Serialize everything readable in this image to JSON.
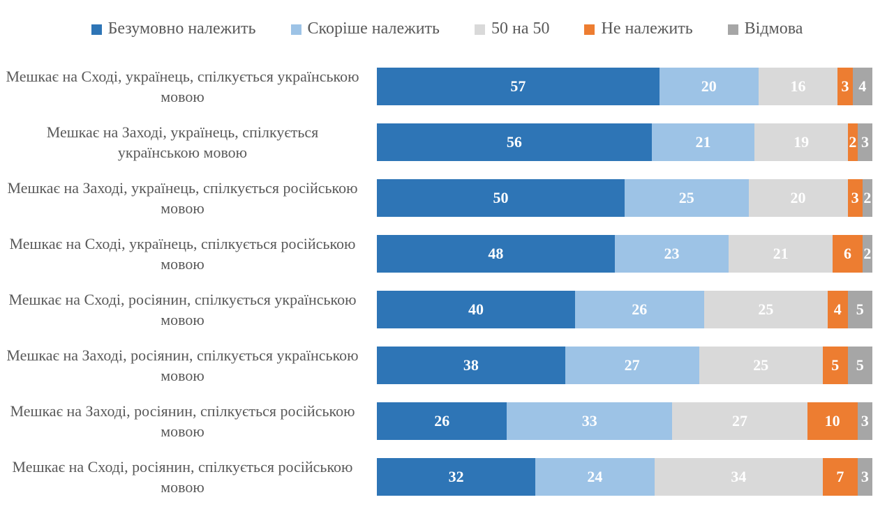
{
  "chart_data": {
    "type": "bar",
    "orientation": "horizontal-stacked",
    "title": "",
    "xlabel": "",
    "ylabel": "",
    "axis_range_percent": [
      0,
      100
    ],
    "grid": false,
    "legend_position": "top",
    "value_labels": "inside-white-bold",
    "label_text_color": "#595959",
    "categories": [
      "Мешкає на Сході, українець, спілкується українською мовою",
      "Мешкає на Заході, українець, спілкується українською мовою",
      "Мешкає на Заході, українець, спілкується російською мовою",
      "Мешкає на Сході, українець, спілкується російською мовою",
      "Мешкає на Сході, росіянин, спілкується українською мовою",
      "Мешкає на Заході, росіянин, спілкується українською мовою",
      "Мешкає на Заході, росіянин, спілкується російською мовою",
      "Мешкає на Сході, росіянин, спілкується російською мовою"
    ],
    "series": [
      {
        "name": "Безумовно належить",
        "color": "#2E75B6",
        "values": [
          57,
          56,
          50,
          48,
          40,
          38,
          26,
          32
        ]
      },
      {
        "name": "Скоріше належить",
        "color": "#9DC3E6",
        "values": [
          20,
          21,
          25,
          23,
          26,
          27,
          33,
          24
        ]
      },
      {
        "name": "50 на 50",
        "color": "#D9D9D9",
        "values": [
          16,
          19,
          20,
          21,
          25,
          25,
          27,
          34
        ]
      },
      {
        "name": "Не належить",
        "color": "#ED7D31",
        "values": [
          3,
          2,
          3,
          6,
          4,
          5,
          10,
          7
        ]
      },
      {
        "name": "Відмова",
        "color": "#A6A6A6",
        "values": [
          4,
          3,
          2,
          2,
          5,
          5,
          3,
          3
        ]
      }
    ]
  }
}
